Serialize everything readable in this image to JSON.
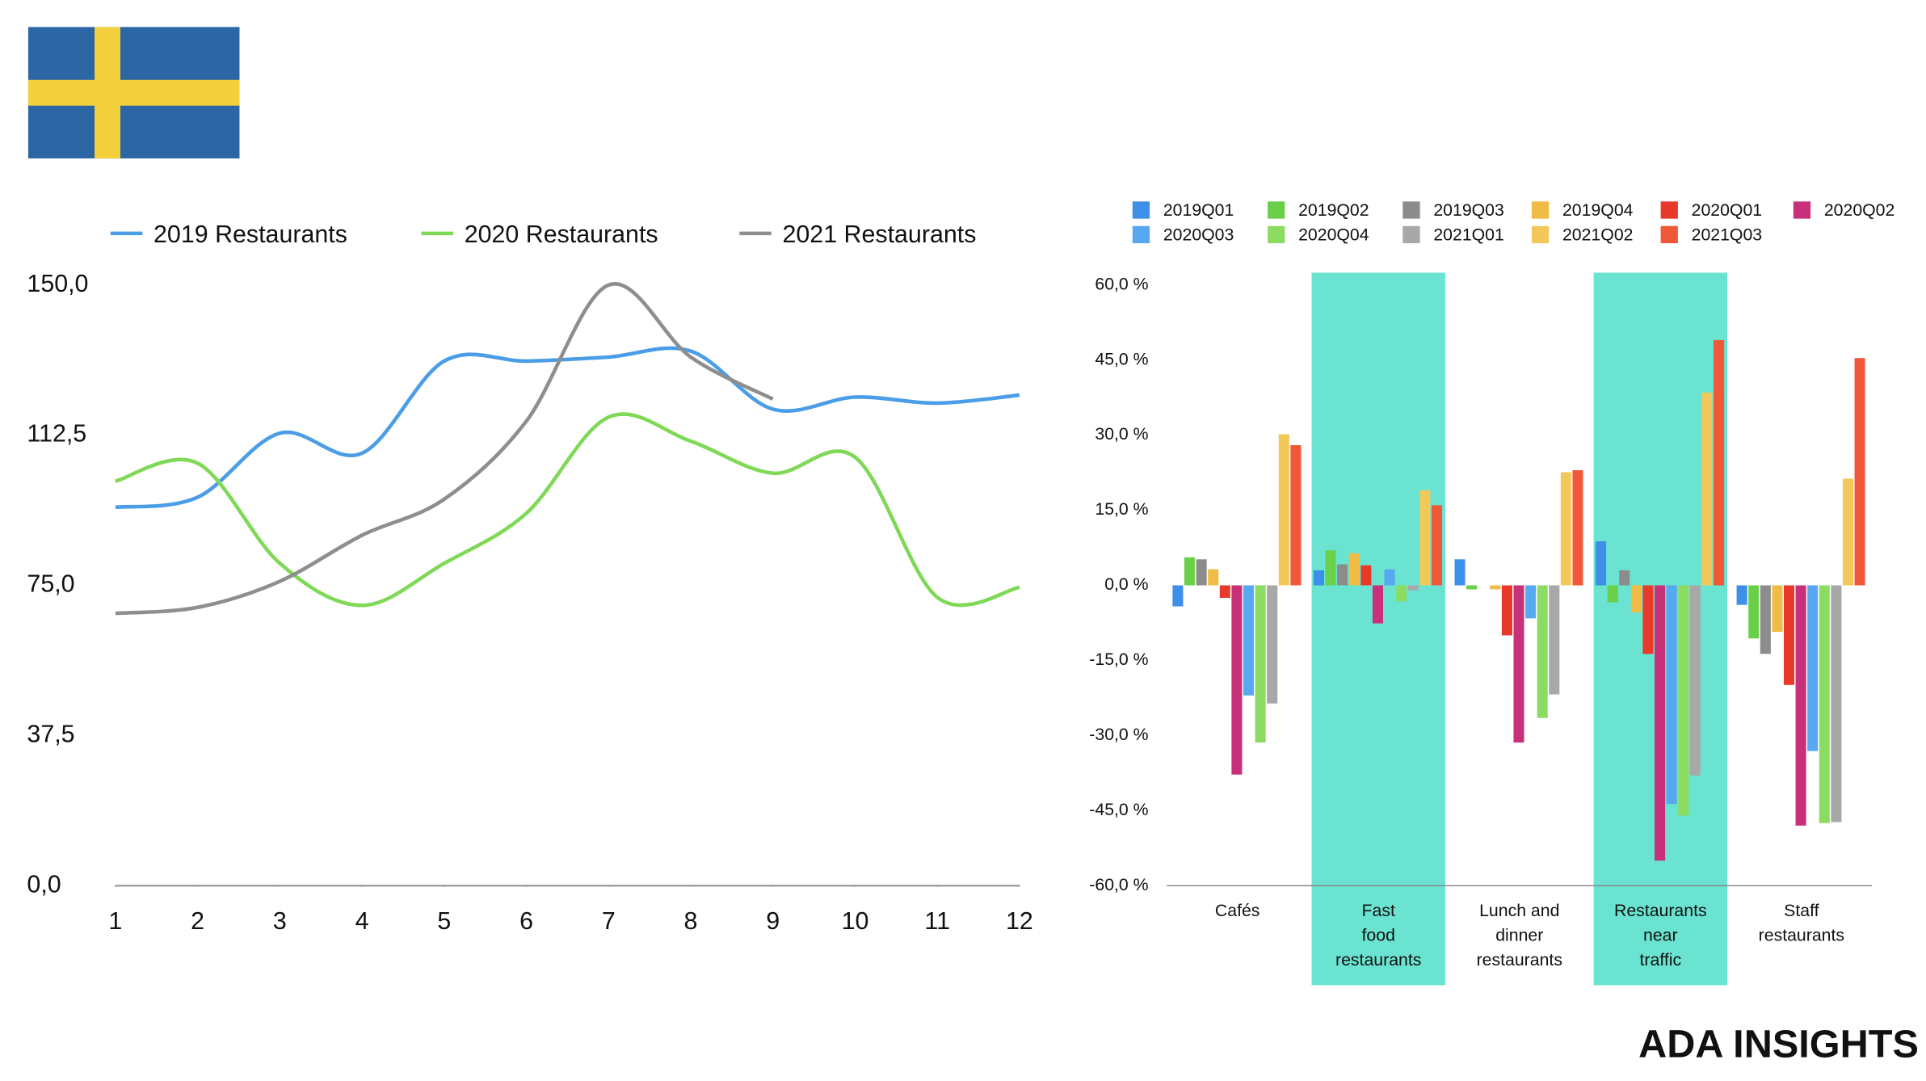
{
  "brand": "ADA INSIGHTS",
  "chart_data": [
    {
      "type": "line",
      "xlim": [
        1,
        12
      ],
      "xticks": [
        1,
        2,
        3,
        4,
        5,
        6,
        7,
        8,
        9,
        10,
        11,
        12
      ],
      "x": [
        1,
        2,
        3,
        4,
        5,
        6,
        7,
        8,
        9,
        10,
        11,
        12
      ],
      "ylim": [
        0,
        150
      ],
      "yticks": [
        {
          "value": 0,
          "label": "0,0"
        },
        {
          "value": 37.5,
          "label": "37,5"
        },
        {
          "value": 75,
          "label": "75,0"
        },
        {
          "value": 112.5,
          "label": "112,5"
        },
        {
          "value": 150,
          "label": "150,0"
        }
      ],
      "series": [
        {
          "name": "2019 Restaurants",
          "color": "#4a9de6",
          "values": [
            94.5,
            97,
            113,
            108,
            131,
            131,
            132,
            133.5,
            119,
            122,
            120.5,
            122.5
          ]
        },
        {
          "name": "2020 Restaurants",
          "color": "#7fd957",
          "values": [
            101,
            105.5,
            80.5,
            70,
            80.5,
            93,
            117,
            111,
            103,
            107,
            72,
            74.5
          ]
        },
        {
          "name": "2021 Restaurants",
          "color": "#8e8e8e",
          "values": [
            68,
            69.5,
            76,
            87.5,
            96.5,
            116,
            150,
            132,
            121.5,
            null,
            null,
            null
          ]
        }
      ]
    },
    {
      "type": "bar",
      "categories": [
        "Cafés",
        "Fast\nfood\nrestaurants",
        "Lunch and\ndinner\nrestaurants",
        "Restaurants\nnear\ntraffic",
        "Staff\nrestaurants"
      ],
      "highlighted": [
        false,
        true,
        false,
        true,
        false
      ],
      "highlight_color": "#6ae3d0",
      "ylim": [
        -60,
        60
      ],
      "yticks": [
        {
          "value": -60,
          "label": "-60,0 %"
        },
        {
          "value": -45,
          "label": "-45,0 %"
        },
        {
          "value": -30,
          "label": "-30,0 %"
        },
        {
          "value": -15,
          "label": "-15,0 %"
        },
        {
          "value": 0,
          "label": "0,0 %"
        },
        {
          "value": 15,
          "label": "15,0 %"
        },
        {
          "value": 30,
          "label": "30,0 %"
        },
        {
          "value": 45,
          "label": "45,0 %"
        },
        {
          "value": 60,
          "label": "60,0 %"
        }
      ],
      "series": [
        {
          "name": "2019Q01",
          "color": "#3d8fe8",
          "values": [
            -4.2,
            3,
            5.2,
            8.8,
            -3.9
          ]
        },
        {
          "name": "2019Q02",
          "color": "#6ad04a",
          "values": [
            5.6,
            7,
            -0.8,
            -3.4,
            -10.6
          ]
        },
        {
          "name": "2019Q03",
          "color": "#8c8c8c",
          "values": [
            5.2,
            4.2,
            0,
            3,
            -13.7
          ]
        },
        {
          "name": "2019Q04",
          "color": "#f0bc45",
          "values": [
            3.2,
            6.4,
            -0.8,
            -5.4,
            -9.3
          ]
        },
        {
          "name": "2020Q01",
          "color": "#e8392a",
          "values": [
            -2.5,
            4,
            -10,
            -13.7,
            -19.9
          ]
        },
        {
          "name": "2020Q02",
          "color": "#c9307a",
          "values": [
            -37.8,
            -7.6,
            -31.4,
            -55,
            -48
          ]
        },
        {
          "name": "2020Q03",
          "color": "#57a8f0",
          "values": [
            -22,
            3.2,
            -6.6,
            -43.7,
            -33.1
          ]
        },
        {
          "name": "2020Q04",
          "color": "#8cdc62",
          "values": [
            -31.4,
            -3.2,
            -26.5,
            -46,
            -47.5
          ]
        },
        {
          "name": "2021Q01",
          "color": "#a8a8a8",
          "values": [
            -23.6,
            -1,
            -21.8,
            -38,
            -47.3
          ]
        },
        {
          "name": "2021Q02",
          "color": "#f2c85a",
          "values": [
            30.2,
            19,
            22.6,
            38.5,
            21.3
          ]
        },
        {
          "name": "2021Q03",
          "color": "#f0583a",
          "values": [
            28,
            16,
            23,
            49,
            45.4
          ]
        }
      ]
    }
  ]
}
